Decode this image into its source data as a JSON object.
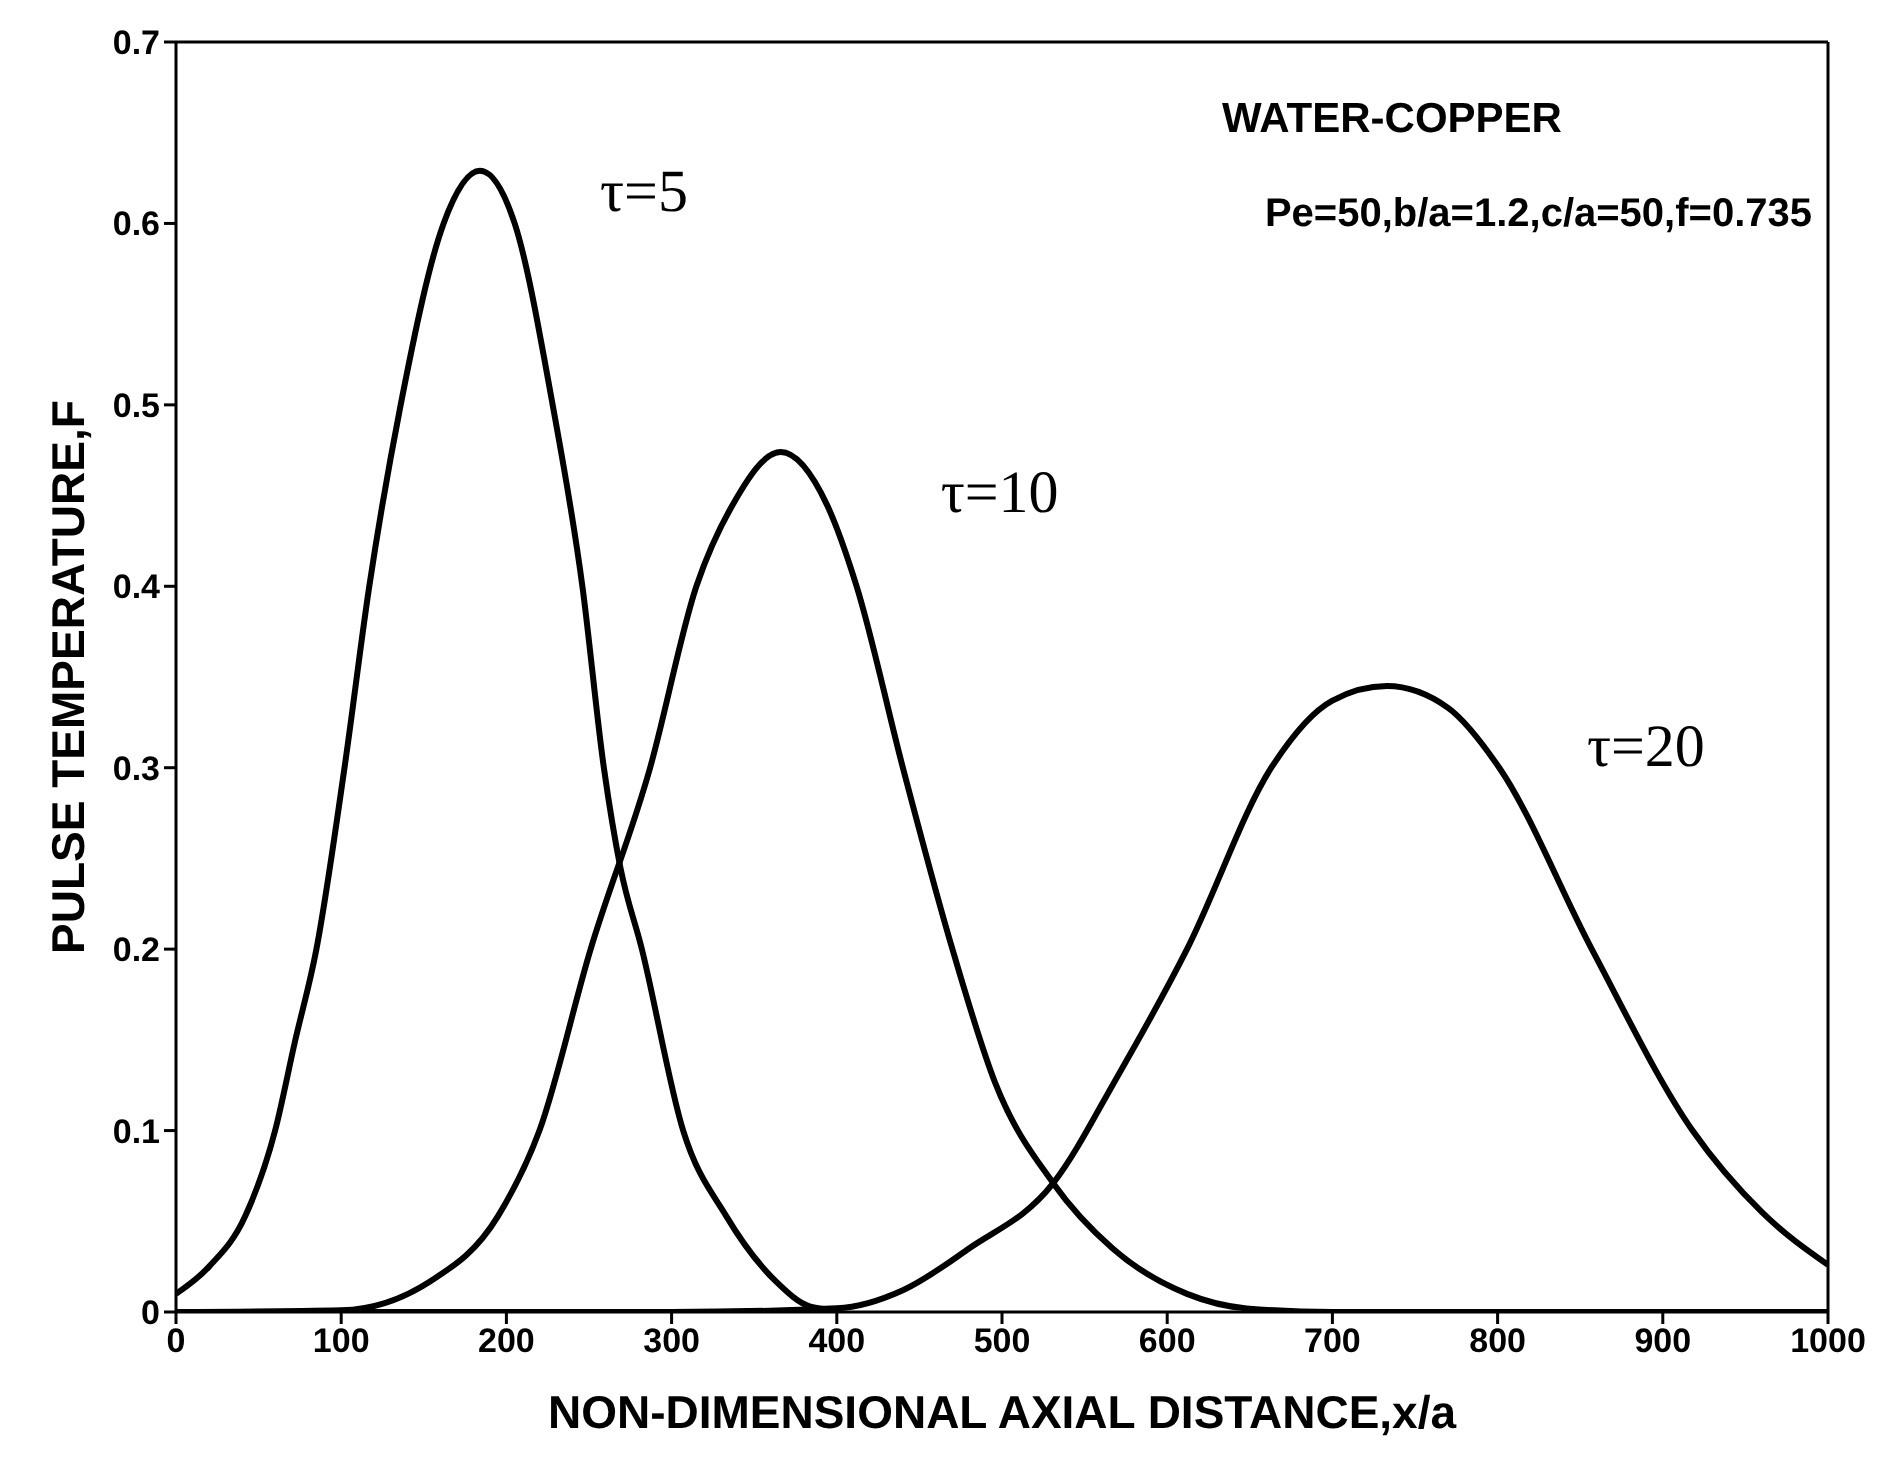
{
  "chart_data": {
    "type": "line",
    "xlabel": "NON-DIMENSIONAL AXIAL DISTANCE,x/a",
    "ylabel": "PULSE TEMPERATURE,F",
    "xlim": [
      0,
      1000
    ],
    "xticks": [
      0,
      100,
      200,
      300,
      400,
      500,
      600,
      700,
      800,
      900,
      1000
    ],
    "ylim": [
      0,
      0.7
    ],
    "yticks": [
      0,
      0.1,
      0.2,
      0.3,
      0.4,
      0.5,
      0.6,
      0.7
    ],
    "marker": "none",
    "line_style": "solid",
    "series": [
      {
        "name": "τ=5",
        "color": "#000000",
        "x": [
          0,
          20,
          42,
          60,
          72,
          85,
          102,
          117,
          136,
          162,
          184,
          205,
          228,
          246,
          259,
          269,
          282,
          307,
          333,
          363,
          384,
          400
        ],
        "values": [
          0.01,
          0.025,
          0.053,
          0.1,
          0.149,
          0.2,
          0.3,
          0.4,
          0.5,
          0.6,
          0.629,
          0.6,
          0.5,
          0.4,
          0.3,
          0.245,
          0.2,
          0.1,
          0.053,
          0.017,
          0.003,
          0.001
        ]
      },
      {
        "name": "τ=10",
        "color": "#000000",
        "x": [
          0,
          100,
          154,
          195,
          220,
          251,
          287,
          315,
          337,
          366,
          394,
          412,
          440,
          470,
          496,
          531,
          567,
          612,
          648,
          700,
          1000
        ],
        "values": [
          0,
          0.001,
          0.017,
          0.053,
          0.1,
          0.2,
          0.3,
          0.4,
          0.445,
          0.474,
          0.445,
          0.4,
          0.3,
          0.2,
          0.126,
          0.071,
          0.035,
          0.01,
          0.002,
          0,
          0
        ]
      },
      {
        "name": "τ=20",
        "color": "#000000",
        "x": [
          0,
          300,
          400,
          440,
          480,
          531,
          570,
          612,
          663,
          700,
          733,
          770,
          801,
          857,
          918,
          960,
          1000
        ],
        "values": [
          0,
          0,
          0.002,
          0.012,
          0.035,
          0.071,
          0.13,
          0.2,
          0.3,
          0.337,
          0.345,
          0.333,
          0.3,
          0.2,
          0.1,
          0.055,
          0.026
        ]
      }
    ],
    "annotations": [
      "WATER-COPPER",
      "Pe=50,b/a=1.2,c/a=50,f=0.735"
    ]
  }
}
